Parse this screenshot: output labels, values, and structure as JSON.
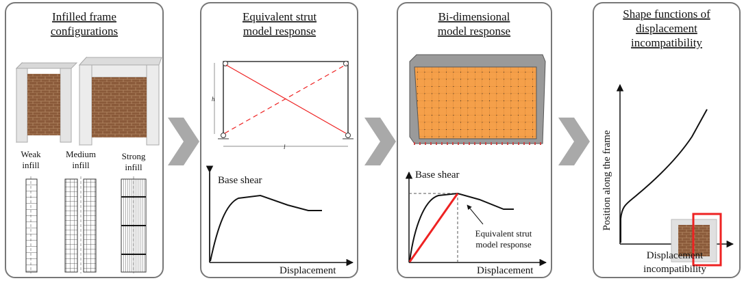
{
  "panels": [
    {
      "title": [
        "Infilled frame",
        "configurations"
      ],
      "infill_types": [
        [
          "Weak",
          "infill"
        ],
        [
          "Medium",
          "infill"
        ],
        [
          "Strong",
          "infill"
        ]
      ]
    },
    {
      "title": [
        "Equivalent strut",
        "model response"
      ],
      "frame_labels": [
        "h",
        "l"
      ],
      "y_axis": "Base shear",
      "x_axis": "Displacement"
    },
    {
      "title": [
        "Bi-dimensional",
        "model response"
      ],
      "y_axis": "Base shear",
      "x_axis": "Displacement",
      "annotation": [
        "Equivalent strut",
        "model response"
      ]
    },
    {
      "title": [
        "Shape functions of",
        "displacement",
        "incompatibility"
      ],
      "y_axis": "Position along the frame",
      "x_axis": [
        "Displacement",
        "incompatibility"
      ]
    }
  ]
}
